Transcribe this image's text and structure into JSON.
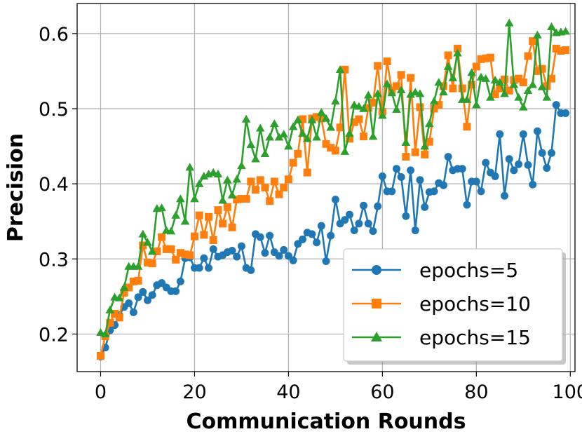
{
  "chart_data": {
    "type": "line",
    "xlabel": "Communication Rounds",
    "ylabel": "Precision",
    "xlim": [
      -5,
      101
    ],
    "ylim": [
      0.15,
      0.64
    ],
    "xticks": [
      0,
      20,
      40,
      60,
      80,
      100
    ],
    "yticks": [
      0.2,
      0.3,
      0.4,
      0.5,
      0.6
    ],
    "grid": true,
    "legend_position": "lower-right",
    "x": [
      0,
      1,
      2,
      3,
      4,
      5,
      6,
      7,
      8,
      9,
      10,
      11,
      12,
      13,
      14,
      15,
      16,
      17,
      18,
      19,
      20,
      21,
      22,
      23,
      24,
      25,
      26,
      27,
      28,
      29,
      30,
      31,
      32,
      33,
      34,
      35,
      36,
      37,
      38,
      39,
      40,
      41,
      42,
      43,
      44,
      45,
      46,
      47,
      48,
      49,
      50,
      51,
      52,
      53,
      54,
      55,
      56,
      57,
      58,
      59,
      60,
      61,
      62,
      63,
      64,
      65,
      66,
      67,
      68,
      69,
      70,
      71,
      72,
      73,
      74,
      75,
      76,
      77,
      78,
      79,
      80,
      81,
      82,
      83,
      84,
      85,
      86,
      87,
      88,
      89,
      90,
      91,
      92,
      93,
      94,
      95,
      96,
      97,
      98,
      99
    ],
    "series": [
      {
        "name": "epochs=5",
        "color": "#1f77b4",
        "marker": "circle",
        "values": [
          0.17,
          0.182,
          0.205,
          0.212,
          0.225,
          0.236,
          0.241,
          0.229,
          0.249,
          0.256,
          0.245,
          0.252,
          0.265,
          0.268,
          0.262,
          0.257,
          0.257,
          0.27,
          0.301,
          0.302,
          0.288,
          0.288,
          0.301,
          0.288,
          0.313,
          0.303,
          0.305,
          0.309,
          0.311,
          0.303,
          0.317,
          0.288,
          0.285,
          0.333,
          0.329,
          0.308,
          0.331,
          0.309,
          0.304,
          0.312,
          0.304,
          0.298,
          0.32,
          0.326,
          0.335,
          0.333,
          0.322,
          0.344,
          0.297,
          0.331,
          0.379,
          0.347,
          0.352,
          0.359,
          0.338,
          0.347,
          0.371,
          0.347,
          0.337,
          0.37,
          0.41,
          0.39,
          0.39,
          0.42,
          0.409,
          0.357,
          0.418,
          0.338,
          0.405,
          0.369,
          0.389,
          0.39,
          0.401,
          0.398,
          0.436,
          0.418,
          0.42,
          0.42,
          0.372,
          0.403,
          0.403,
          0.39,
          0.428,
          0.415,
          0.41,
          0.466,
          0.384,
          0.433,
          0.418,
          0.426,
          0.466,
          0.425,
          0.399,
          0.47,
          0.441,
          0.421,
          0.441,
          0.505,
          0.494,
          0.494
        ]
      },
      {
        "name": "epochs=10",
        "color": "#ff7f0e",
        "marker": "square",
        "values": [
          0.171,
          0.197,
          0.215,
          0.227,
          0.222,
          0.255,
          0.262,
          0.27,
          0.271,
          0.318,
          0.295,
          0.294,
          0.31,
          0.329,
          0.313,
          0.313,
          0.299,
          0.308,
          0.306,
          0.305,
          0.33,
          0.358,
          0.332,
          0.356,
          0.325,
          0.365,
          0.347,
          0.369,
          0.342,
          0.379,
          0.38,
          0.38,
          0.403,
          0.392,
          0.405,
          0.395,
          0.377,
          0.403,
          0.386,
          0.395,
          0.406,
          0.428,
          0.44,
          0.486,
          0.415,
          0.487,
          0.489,
          0.487,
          0.453,
          0.448,
          0.444,
          0.475,
          0.552,
          0.46,
          0.482,
          0.486,
          0.463,
          0.501,
          0.508,
          0.557,
          0.496,
          0.563,
          0.524,
          0.53,
          0.545,
          0.436,
          0.541,
          0.442,
          0.502,
          0.439,
          0.456,
          0.5,
          0.505,
          0.53,
          0.571,
          0.527,
          0.58,
          0.527,
          0.476,
          0.532,
          0.556,
          0.566,
          0.567,
          0.568,
          0.519,
          0.527,
          0.539,
          0.524,
          0.538,
          0.54,
          0.535,
          0.57,
          0.59,
          0.55,
          0.553,
          0.53,
          0.54,
          0.58,
          0.577,
          0.578
        ]
      },
      {
        "name": "epochs=15",
        "color": "#2ca02c",
        "marker": "triangle",
        "values": [
          0.202,
          0.2,
          0.232,
          0.249,
          0.248,
          0.262,
          0.29,
          0.29,
          0.29,
          0.333,
          0.322,
          0.31,
          0.367,
          0.368,
          0.338,
          0.337,
          0.358,
          0.38,
          0.35,
          0.422,
          0.38,
          0.4,
          0.41,
          0.413,
          0.415,
          0.413,
          0.378,
          0.405,
          0.385,
          0.406,
          0.424,
          0.486,
          0.452,
          0.433,
          0.474,
          0.44,
          0.462,
          0.48,
          0.462,
          0.466,
          0.45,
          0.476,
          0.485,
          0.467,
          0.46,
          0.485,
          0.462,
          0.495,
          0.487,
          0.475,
          0.51,
          0.552,
          0.443,
          0.467,
          0.505,
          0.503,
          0.5,
          0.518,
          0.463,
          0.52,
          0.491,
          0.533,
          0.521,
          0.499,
          0.525,
          0.455,
          0.519,
          0.522,
          0.52,
          0.45,
          0.48,
          0.51,
          0.535,
          0.522,
          0.556,
          0.541,
          0.574,
          0.512,
          0.512,
          0.548,
          0.505,
          0.542,
          0.54,
          0.515,
          0.538,
          0.535,
          0.52,
          0.614,
          0.532,
          0.515,
          0.502,
          0.524,
          0.532,
          0.598,
          0.529,
          0.515,
          0.609,
          0.601,
          0.602,
          0.603
        ]
      }
    ]
  }
}
